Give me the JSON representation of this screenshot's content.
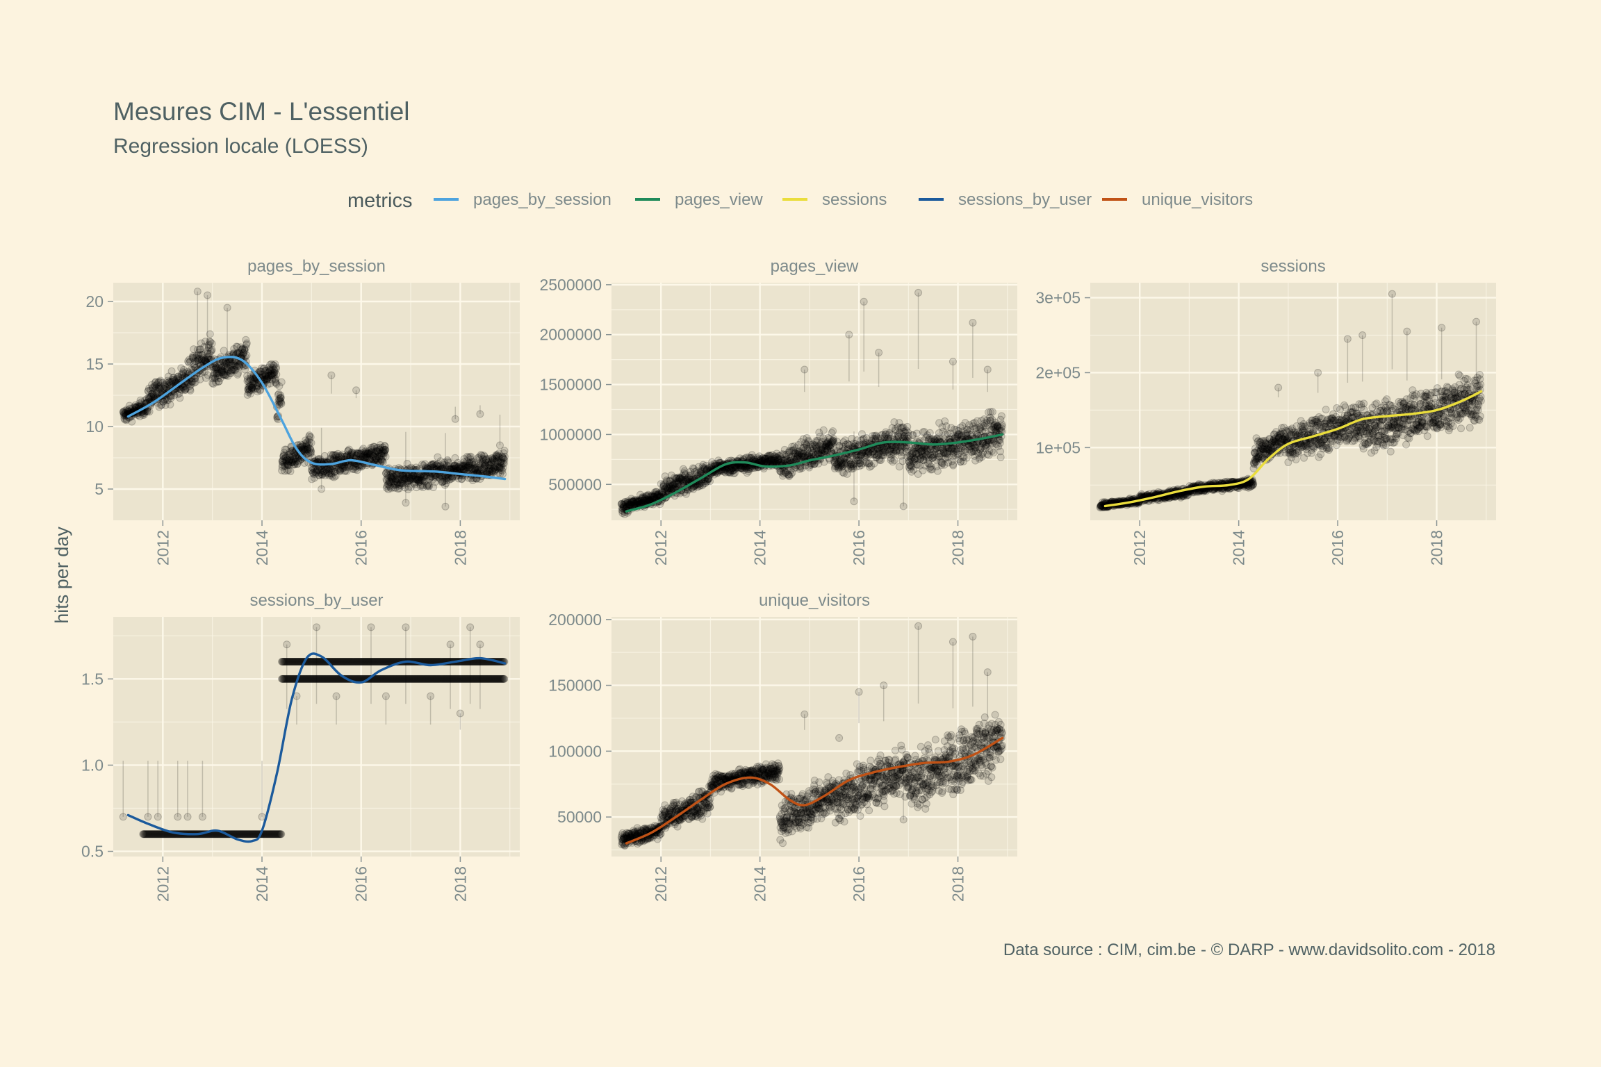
{
  "title": "Mesures CIM - L'essentiel",
  "subtitle": "Regression locale (LOESS)",
  "caption": "Data source : CIM, cim.be - © DARP - www.davidsolito.com - 2018",
  "colors": {
    "background": "#fcf3df",
    "panel": "#ebe4cf",
    "grid": "#fdf8e9",
    "points": "#000000",
    "text": "#4f6163"
  },
  "chart_data": {
    "type": "scatter",
    "ylabel": "hits per day",
    "legend": {
      "title": "metrics",
      "position": "top",
      "items": [
        {
          "name": "pages_by_session",
          "color": "#4da3de"
        },
        {
          "name": "pages_view",
          "color": "#1f8a5a"
        },
        {
          "name": "sessions",
          "color": "#eadd3c"
        },
        {
          "name": "sessions_by_user",
          "color": "#1b5a9c"
        },
        {
          "name": "unique_visitors",
          "color": "#c05216"
        }
      ]
    },
    "x_ticks": [
      "2012",
      "2014",
      "2016",
      "2018"
    ],
    "xlim": [
      2011.0,
      2019.2
    ],
    "grid": true,
    "panels": [
      {
        "name": "pages_by_session",
        "color": "#4da3de",
        "ylim": [
          2.5,
          21.5
        ],
        "y_ticks": [
          {
            "value": 5,
            "label": "5"
          },
          {
            "value": 10,
            "label": "10"
          },
          {
            "value": 15,
            "label": "15"
          },
          {
            "value": 20,
            "label": "20"
          }
        ],
        "loess": [
          [
            2011.3,
            10.8
          ],
          [
            2011.8,
            11.9
          ],
          [
            2012.3,
            13.3
          ],
          [
            2012.8,
            14.7
          ],
          [
            2013.2,
            15.5
          ],
          [
            2013.6,
            15.3
          ],
          [
            2014.0,
            13.5
          ],
          [
            2014.4,
            10.5
          ],
          [
            2014.7,
            8.2
          ],
          [
            2015.0,
            7.1
          ],
          [
            2015.4,
            7.0
          ],
          [
            2015.8,
            7.3
          ],
          [
            2016.3,
            6.9
          ],
          [
            2016.8,
            6.5
          ],
          [
            2017.5,
            6.4
          ],
          [
            2018.0,
            6.2
          ],
          [
            2018.5,
            6.0
          ],
          [
            2018.9,
            5.8
          ]
        ],
        "points": {
          "segments": [
            [
              2011.2,
              2011.7,
              10.5,
              12.0,
              1.0
            ],
            [
              2011.7,
              2012.5,
              11.5,
              14.5,
              1.5
            ],
            [
              2012.5,
              2013.0,
              13.0,
              17.0,
              2.0
            ],
            [
              2013.0,
              2013.7,
              13.5,
              16.5,
              1.8
            ],
            [
              2013.7,
              2014.3,
              12.5,
              15.0,
              1.5
            ],
            [
              2014.3,
              2014.4,
              10.5,
              13.5,
              1.5
            ],
            [
              2014.4,
              2015.0,
              6.5,
              9.0,
              1.5
            ],
            [
              2015.0,
              2016.5,
              6.0,
              8.5,
              1.2
            ],
            [
              2016.5,
              2018.9,
              5.0,
              7.8,
              1.2
            ]
          ],
          "outliers": [
            [
              2012.7,
              20.8
            ],
            [
              2012.9,
              20.5
            ],
            [
              2013.3,
              19.5
            ],
            [
              2015.4,
              14.1
            ],
            [
              2015.9,
              12.9
            ],
            [
              2017.9,
              10.6
            ],
            [
              2018.4,
              11.0
            ],
            [
              2018.8,
              8.5
            ],
            [
              2016.9,
              3.9
            ],
            [
              2017.7,
              3.6
            ],
            [
              2015.2,
              5.0
            ]
          ]
        }
      },
      {
        "name": "pages_view",
        "color": "#1f8a5a",
        "ylim": [
          140000,
          2520000
        ],
        "y_ticks": [
          {
            "value": 500000,
            "label": "500000"
          },
          {
            "value": 1000000,
            "label": "1000000"
          },
          {
            "value": 1500000,
            "label": "1500000"
          },
          {
            "value": 2000000,
            "label": "2000000"
          },
          {
            "value": 2500000,
            "label": "2500000"
          }
        ],
        "loess": [
          [
            2011.3,
            230000
          ],
          [
            2011.8,
            300000
          ],
          [
            2012.3,
            420000
          ],
          [
            2012.8,
            560000
          ],
          [
            2013.3,
            700000
          ],
          [
            2013.7,
            720000
          ],
          [
            2014.1,
            680000
          ],
          [
            2014.6,
            690000
          ],
          [
            2015.0,
            740000
          ],
          [
            2015.5,
            790000
          ],
          [
            2016.0,
            850000
          ],
          [
            2016.5,
            920000
          ],
          [
            2017.0,
            920000
          ],
          [
            2017.5,
            900000
          ],
          [
            2018.0,
            920000
          ],
          [
            2018.5,
            960000
          ],
          [
            2018.9,
            1000000
          ]
        ],
        "points": {
          "segments": [
            [
              2011.2,
              2012.0,
              220000,
              420000,
              80000
            ],
            [
              2012.0,
              2013.0,
              350000,
              700000,
              120000
            ],
            [
              2013.0,
              2014.4,
              600000,
              800000,
              100000
            ],
            [
              2014.4,
              2015.5,
              600000,
              1000000,
              250000
            ],
            [
              2015.5,
              2017.0,
              650000,
              1050000,
              300000
            ],
            [
              2017.0,
              2018.9,
              650000,
              1150000,
              300000
            ]
          ],
          "outliers": [
            [
              2014.9,
              1650000
            ],
            [
              2015.8,
              2000000
            ],
            [
              2016.1,
              2330000
            ],
            [
              2016.4,
              1820000
            ],
            [
              2017.2,
              2420000
            ],
            [
              2017.9,
              1730000
            ],
            [
              2018.3,
              2120000
            ],
            [
              2018.6,
              1650000
            ],
            [
              2016.9,
              280000
            ],
            [
              2015.9,
              330000
            ]
          ]
        }
      },
      {
        "name": "sessions",
        "color": "#eadd3c",
        "ylim": [
          3000,
          320000
        ],
        "y_ticks": [
          {
            "value": 100000,
            "label": "1e+05"
          },
          {
            "value": 200000,
            "label": "2e+05"
          },
          {
            "value": 300000,
            "label": "3e+05"
          }
        ],
        "loess": [
          [
            2011.3,
            22000
          ],
          [
            2011.8,
            27000
          ],
          [
            2012.3,
            34000
          ],
          [
            2012.8,
            42000
          ],
          [
            2013.3,
            48000
          ],
          [
            2013.8,
            50000
          ],
          [
            2014.2,
            58000
          ],
          [
            2014.6,
            85000
          ],
          [
            2015.0,
            105000
          ],
          [
            2015.5,
            115000
          ],
          [
            2016.0,
            125000
          ],
          [
            2016.5,
            138000
          ],
          [
            2017.0,
            142000
          ],
          [
            2017.5,
            145000
          ],
          [
            2018.0,
            150000
          ],
          [
            2018.5,
            162000
          ],
          [
            2018.9,
            175000
          ]
        ],
        "points": {
          "segments": [
            [
              2011.2,
              2012.0,
              20000,
              32000,
              5000
            ],
            [
              2012.0,
              2013.0,
              28000,
              45000,
              6000
            ],
            [
              2013.0,
              2014.3,
              40000,
              58000,
              6000
            ],
            [
              2014.3,
              2015.0,
              80000,
              125000,
              25000
            ],
            [
              2015.0,
              2016.5,
              85000,
              155000,
              35000
            ],
            [
              2016.5,
              2018.9,
              100000,
              190000,
              40000
            ]
          ],
          "outliers": [
            [
              2016.2,
              245000
            ],
            [
              2016.5,
              250000
            ],
            [
              2017.1,
              305000
            ],
            [
              2017.4,
              255000
            ],
            [
              2018.1,
              260000
            ],
            [
              2018.8,
              268000
            ],
            [
              2015.6,
              200000
            ],
            [
              2014.8,
              180000
            ]
          ]
        }
      },
      {
        "name": "sessions_by_user",
        "color": "#1b5a9c",
        "ylim": [
          0.47,
          1.86
        ],
        "y_ticks": [
          {
            "value": 0.5,
            "label": "0.5"
          },
          {
            "value": 1.0,
            "label": "1.0"
          },
          {
            "value": 1.5,
            "label": "1.5"
          }
        ],
        "loess": [
          [
            2011.3,
            0.71
          ],
          [
            2011.7,
            0.66
          ],
          [
            2012.2,
            0.61
          ],
          [
            2012.7,
            0.6
          ],
          [
            2013.1,
            0.62
          ],
          [
            2013.5,
            0.57
          ],
          [
            2013.8,
            0.56
          ],
          [
            2014.0,
            0.62
          ],
          [
            2014.3,
            0.95
          ],
          [
            2014.6,
            1.38
          ],
          [
            2014.9,
            1.62
          ],
          [
            2015.2,
            1.63
          ],
          [
            2015.6,
            1.52
          ],
          [
            2016.0,
            1.48
          ],
          [
            2016.4,
            1.55
          ],
          [
            2016.9,
            1.6
          ],
          [
            2017.4,
            1.58
          ],
          [
            2017.9,
            1.6
          ],
          [
            2018.4,
            1.62
          ],
          [
            2018.9,
            1.59
          ]
        ],
        "points": {
          "levels": [
            [
              2011.6,
              2014.4,
              0.6
            ],
            [
              2014.4,
              2018.9,
              1.6
            ],
            [
              2014.4,
              2018.9,
              1.5
            ]
          ],
          "outliers": [
            [
              2011.2,
              0.7
            ],
            [
              2011.7,
              0.7
            ],
            [
              2011.9,
              0.7
            ],
            [
              2012.3,
              0.7
            ],
            [
              2012.5,
              0.7
            ],
            [
              2012.8,
              0.7
            ],
            [
              2014.0,
              0.7
            ],
            [
              2014.5,
              1.7
            ],
            [
              2015.1,
              1.8
            ],
            [
              2016.2,
              1.8
            ],
            [
              2016.9,
              1.8
            ],
            [
              2018.2,
              1.8
            ],
            [
              2018.4,
              1.7
            ],
            [
              2017.8,
              1.7
            ],
            [
              2018.0,
              1.3
            ],
            [
              2014.7,
              1.4
            ],
            [
              2015.5,
              1.4
            ],
            [
              2016.5,
              1.4
            ],
            [
              2017.4,
              1.4
            ]
          ]
        }
      },
      {
        "name": "unique_visitors",
        "color": "#c05216",
        "ylim": [
          20000,
          202000
        ],
        "y_ticks": [
          {
            "value": 50000,
            "label": "50000"
          },
          {
            "value": 100000,
            "label": "100000"
          },
          {
            "value": 150000,
            "label": "150000"
          },
          {
            "value": 200000,
            "label": "200000"
          }
        ],
        "loess": [
          [
            2011.3,
            30000
          ],
          [
            2011.8,
            38000
          ],
          [
            2012.3,
            50000
          ],
          [
            2012.8,
            63000
          ],
          [
            2013.3,
            75000
          ],
          [
            2013.8,
            80000
          ],
          [
            2014.2,
            75000
          ],
          [
            2014.6,
            63000
          ],
          [
            2014.9,
            59000
          ],
          [
            2015.3,
            66000
          ],
          [
            2015.8,
            78000
          ],
          [
            2016.3,
            84000
          ],
          [
            2016.8,
            88000
          ],
          [
            2017.3,
            91000
          ],
          [
            2017.8,
            92000
          ],
          [
            2018.3,
            97000
          ],
          [
            2018.9,
            110000
          ]
        ],
        "points": {
          "segments": [
            [
              2011.2,
              2012.0,
              28000,
              45000,
              7000
            ],
            [
              2012.0,
              2013.0,
              40000,
              70000,
              10000
            ],
            [
              2013.0,
              2014.4,
              70000,
              90000,
              8000
            ],
            [
              2014.4,
              2015.5,
              35000,
              80000,
              20000
            ],
            [
              2015.5,
              2017.0,
              50000,
              100000,
              25000
            ],
            [
              2017.0,
              2018.9,
              60000,
              125000,
              30000
            ]
          ],
          "outliers": [
            [
              2014.9,
              128000
            ],
            [
              2016.0,
              145000
            ],
            [
              2016.5,
              150000
            ],
            [
              2017.2,
              195000
            ],
            [
              2017.9,
              183000
            ],
            [
              2018.3,
              187000
            ],
            [
              2018.6,
              160000
            ],
            [
              2015.6,
              110000
            ],
            [
              2016.9,
              48000
            ]
          ]
        }
      }
    ]
  }
}
